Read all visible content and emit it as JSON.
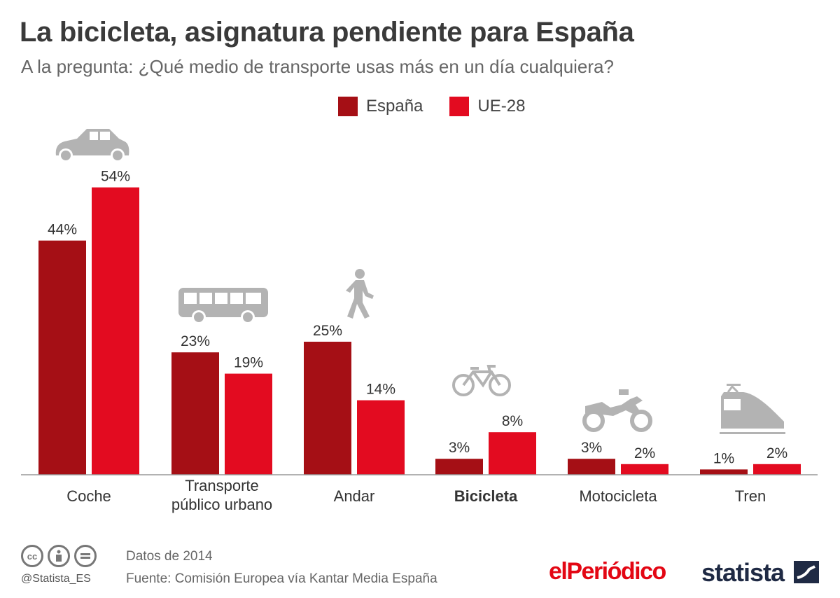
{
  "title": "La bicicleta, asignatura pendiente para España",
  "subtitle": "A la pregunta: ¿Qué medio de transporte usas más en un día cualquiera?",
  "legend": {
    "spain": "España",
    "eu": "UE-28"
  },
  "colors": {
    "spain": "#a50f15",
    "eu": "#e30b20",
    "icon": "#b3b3b3",
    "axis": "#999999"
  },
  "chart_data": {
    "type": "bar",
    "title": "La bicicleta, asignatura pendiente para España",
    "xlabel": "",
    "ylabel": "",
    "ylim": [
      0,
      60
    ],
    "grid": false,
    "legend_position": "top-center",
    "categories": [
      {
        "label": "Coche",
        "bold": false,
        "icon": "car-icon"
      },
      {
        "label": "Transporte\npúblico urbano",
        "bold": false,
        "icon": "bus-icon"
      },
      {
        "label": "Andar",
        "bold": false,
        "icon": "walking-person-icon"
      },
      {
        "label": "Bicicleta",
        "bold": true,
        "icon": "bicycle-icon"
      },
      {
        "label": "Motocicleta",
        "bold": false,
        "icon": "motorcycle-icon"
      },
      {
        "label": "Tren",
        "bold": false,
        "icon": "train-icon"
      }
    ],
    "series": [
      {
        "name": "España",
        "values": [
          44,
          23,
          25,
          3,
          3,
          1
        ],
        "unit": "%"
      },
      {
        "name": "UE-28",
        "values": [
          54,
          19,
          14,
          8,
          2,
          2
        ],
        "unit": "%"
      }
    ]
  },
  "footer": {
    "cc_icons": [
      "cc",
      "by",
      "nd"
    ],
    "handle": "@Statista_ES",
    "data_year": "Datos de 2014",
    "source": "Fuente: Comisión Europea vía Kantar Media España",
    "logo_elperiodico": "elPeriódico",
    "logo_statista": "statista"
  }
}
